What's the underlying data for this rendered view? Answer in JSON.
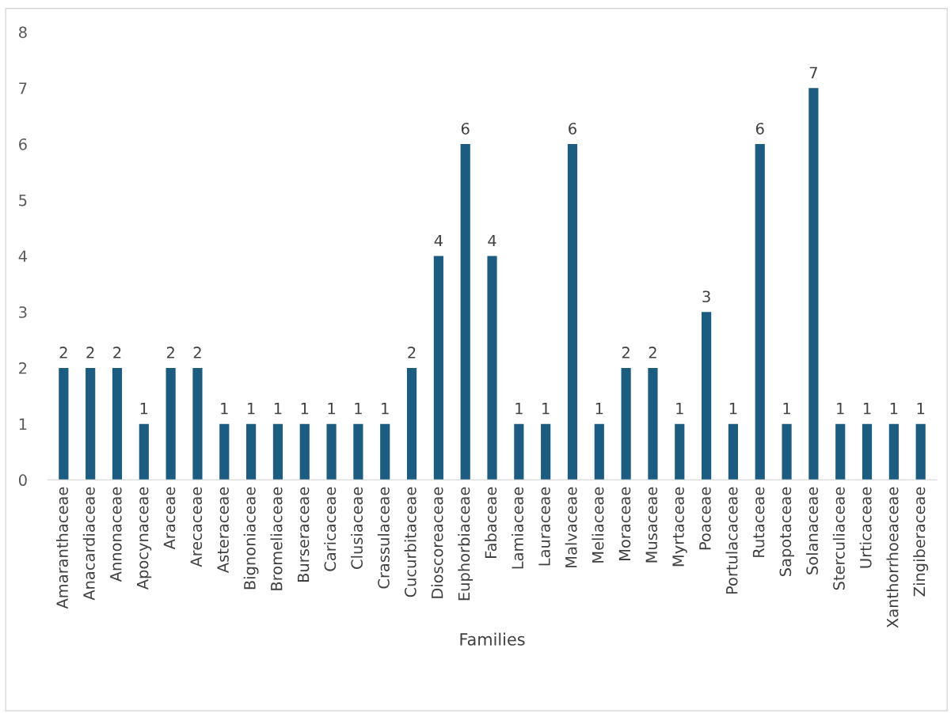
{
  "chart_data": {
    "type": "bar",
    "xlabel": "Families",
    "categories": [
      "Amaranthaceae",
      "Anacardiaceae",
      "Annonaceae",
      "Apocynaceae",
      "Araceae",
      "Arecaceae",
      "Asteraceae",
      "Bignoniaceae",
      "Bromeliaceae",
      "Burseraceae",
      "Caricaceae",
      "Clusiaceae",
      "Crassulaceae",
      "Cucurbitaceae",
      "Dioscoreaceae",
      "Euphorbiaceae",
      "Fabaceae",
      "Lamiaceae",
      "Lauraceae",
      "Malvaceae",
      "Meliaceae",
      "Moraceae",
      "Musaceae",
      "Myrtaceae",
      "Poaceae",
      "Portulacaceae",
      "Rutaceae",
      "Sapotaceae",
      "Solanaceae",
      "Sterculiaceae",
      "Urticaceae",
      "Xanthorrhoeaceae",
      "Zingiberaceae"
    ],
    "values": [
      2,
      2,
      2,
      1,
      2,
      2,
      1,
      1,
      1,
      1,
      1,
      1,
      1,
      2,
      4,
      6,
      4,
      1,
      1,
      6,
      1,
      2,
      2,
      1,
      3,
      1,
      6,
      1,
      7,
      1,
      1,
      1,
      1
    ],
    "color": "#1b5c80",
    "ylim": [
      0,
      8
    ],
    "yticks": [
      0,
      1,
      2,
      3,
      4,
      5,
      6,
      7,
      8
    ],
    "data_labels": true,
    "grid": false,
    "legend": false
  }
}
